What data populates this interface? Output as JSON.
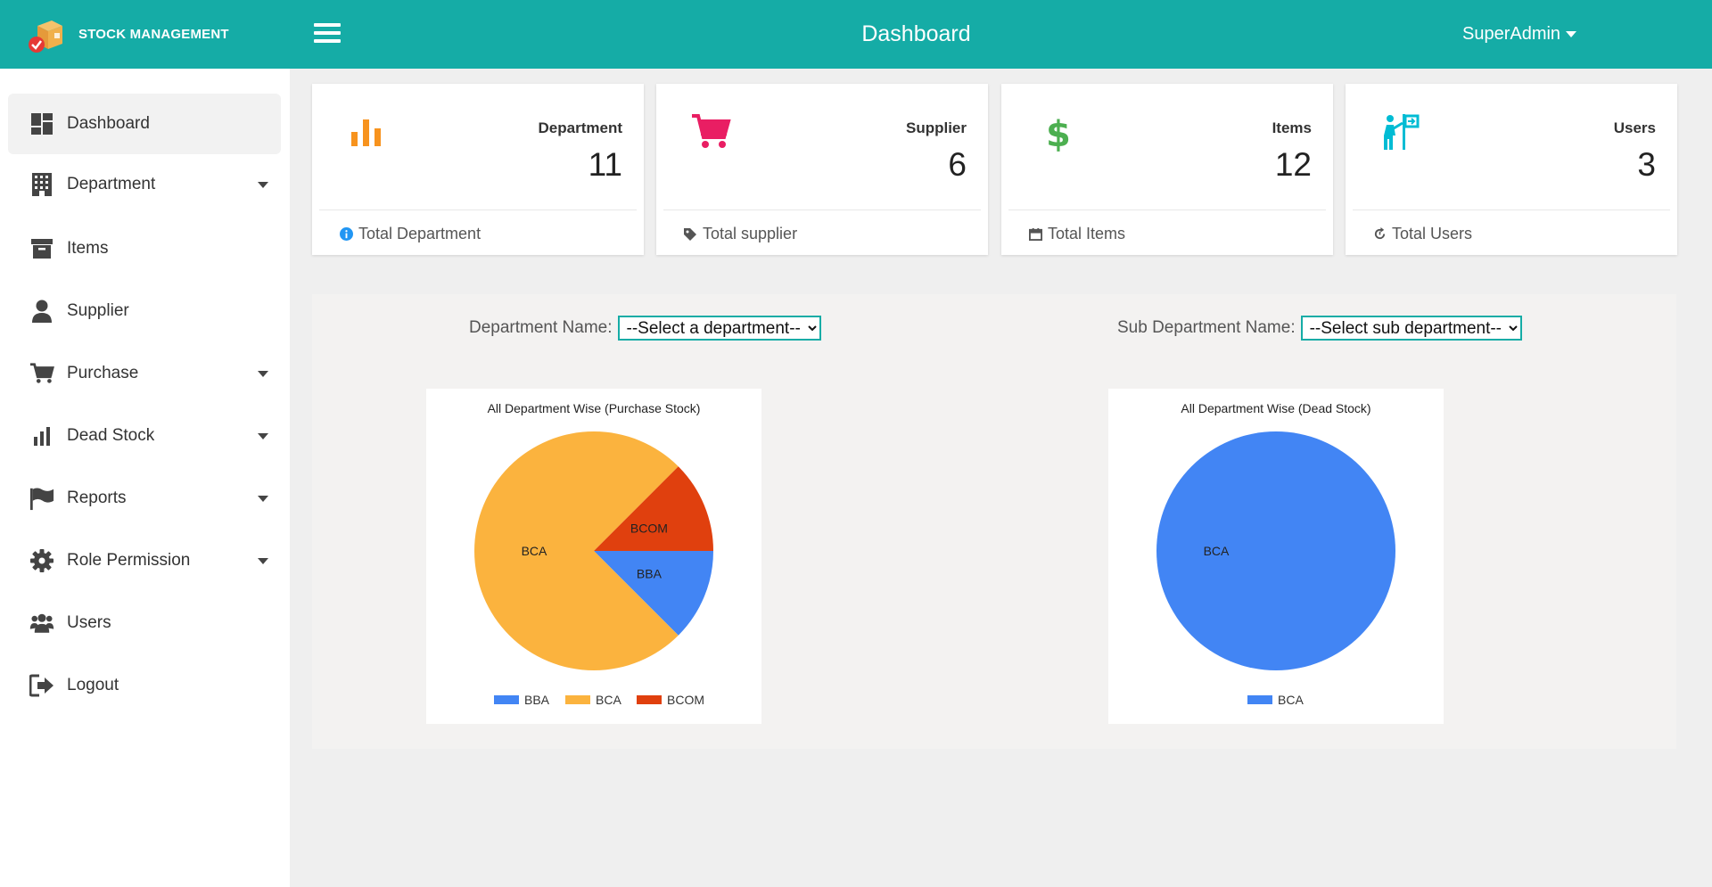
{
  "brand": {
    "name": "STOCK MANAGEMENT"
  },
  "header": {
    "title": "Dashboard",
    "user": "SuperAdmin"
  },
  "sidebar": {
    "items": [
      {
        "label": "Dashboard"
      },
      {
        "label": "Department"
      },
      {
        "label": "Items"
      },
      {
        "label": "Supplier"
      },
      {
        "label": "Purchase"
      },
      {
        "label": "Dead Stock"
      },
      {
        "label": "Reports"
      },
      {
        "label": "Role Permission"
      },
      {
        "label": "Users"
      },
      {
        "label": "Logout"
      }
    ]
  },
  "cards": [
    {
      "title": "Department",
      "value": "11",
      "footer": "Total Department",
      "color": "#f7931e"
    },
    {
      "title": "Supplier",
      "value": "6",
      "footer": "Total supplier",
      "color": "#e91e63"
    },
    {
      "title": "Items",
      "value": "12",
      "footer": "Total Items",
      "color": "#4caf50"
    },
    {
      "title": "Users",
      "value": "3",
      "footer": "Total Users",
      "color": "#00bcd4"
    }
  ],
  "filters": {
    "department_label": "Department Name:",
    "department_selected": "--Select a department--",
    "sub_department_label": "Sub Department Name:",
    "sub_department_selected": "--Select sub department--"
  },
  "chart_data": [
    {
      "type": "pie",
      "title": "All Department Wise (Purchase Stock)",
      "categories": [
        "BBA",
        "BCA",
        "BCOM"
      ],
      "values": [
        1,
        6,
        1
      ],
      "colors": [
        "#4285f4",
        "#fbb33e",
        "#e0400e"
      ],
      "legend": "bottom"
    },
    {
      "type": "pie",
      "title": "All Department Wise (Dead Stock)",
      "categories": [
        "BCA"
      ],
      "values": [
        1
      ],
      "colors": [
        "#4285f4"
      ],
      "legend": "bottom"
    }
  ]
}
